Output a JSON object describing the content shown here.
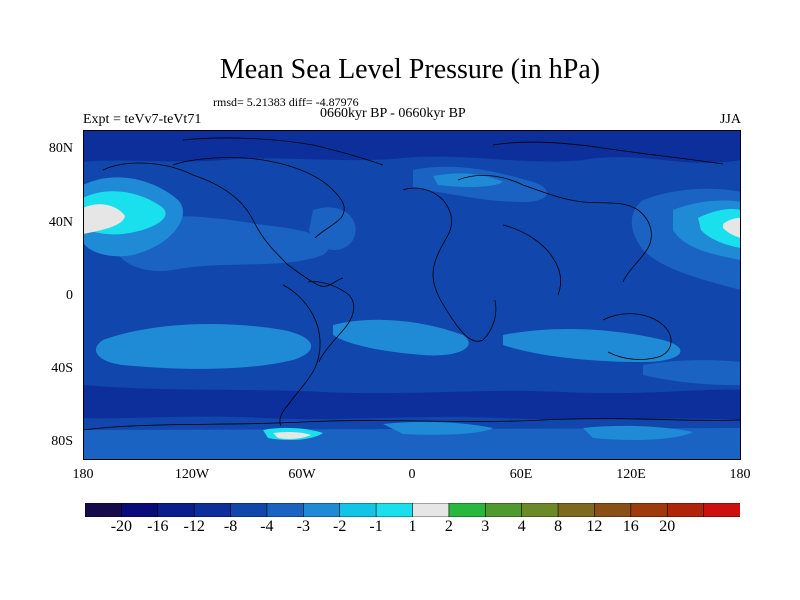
{
  "title": "Mean Sea Level Pressure (in hPa)",
  "stats": "rmsd= 5.21383 diff= -4.87976",
  "period": "0660kyr BP - 0660kyr BP",
  "expt": "Expt = teVv7-teVt71",
  "season": "JJA",
  "lat_labels": [
    "80N",
    "40N",
    "0",
    "40S",
    "80S"
  ],
  "lon_labels": [
    "180",
    "120W",
    "60W",
    "0",
    "60E",
    "120E",
    "180"
  ],
  "colorbar": {
    "levels": [
      "-20",
      "-16",
      "-12",
      "-8",
      "-4",
      "-3",
      "-2",
      "-1",
      "1",
      "2",
      "3",
      "4",
      "8",
      "12",
      "16",
      "20"
    ],
    "colors": [
      "#160a4a",
      "#0a0a7a",
      "#0b1f8c",
      "#0d2f9c",
      "#1146ad",
      "#1a63c3",
      "#1f8ad6",
      "#12c4e6",
      "#19e0ec",
      "#e6e6e6",
      "#27b83d",
      "#4f9a2e",
      "#6b8a27",
      "#7d6a1f",
      "#8a4f14",
      "#9e3a0c",
      "#b0250a",
      "#cc1010"
    ]
  },
  "map_colors": {
    "ocean_base": "#1146ad",
    "land_base": "#0d2f9c",
    "moderate": "#1a63c3",
    "light": "#1f8ad6",
    "cyan": "#19e0ec",
    "near_zero": "#e6e6e6"
  }
}
